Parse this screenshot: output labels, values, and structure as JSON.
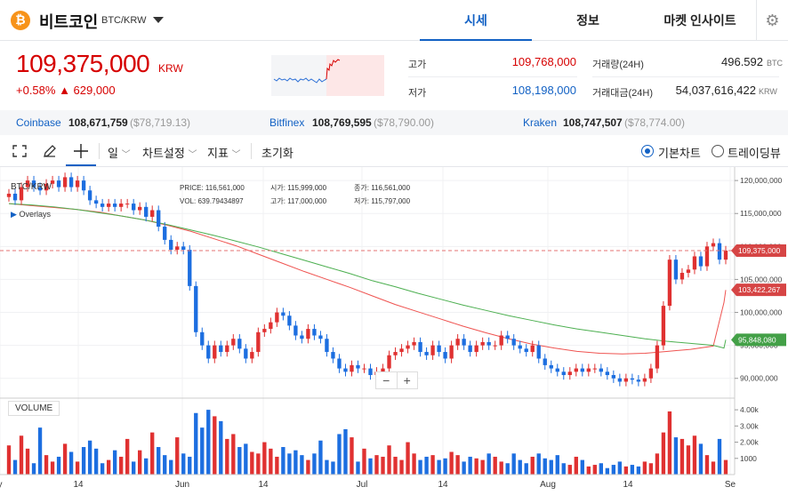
{
  "header": {
    "coin_symbol": "₿",
    "coin_name": "비트코인",
    "pair": "BTC/KRW",
    "tabs": [
      "시세",
      "정보",
      "마켓 인사이트"
    ],
    "active_tab": 0
  },
  "price": {
    "value": "109,375,000",
    "unit": "KRW",
    "change_pct": "+0.58%",
    "change_amt": "▲ 629,000"
  },
  "stats": {
    "high_label": "고가",
    "high": "109,768,000",
    "low_label": "저가",
    "low": "108,198,000",
    "vol_label": "거래량(24H)",
    "vol": "496.592",
    "vol_unit": "BTC",
    "amt_label": "거래대금(24H)",
    "amt": "54,037,616,422",
    "amt_unit": "KRW"
  },
  "exchanges": [
    {
      "name": "Coinbase",
      "price": "108,671,759",
      "usd": "($78,719.13)"
    },
    {
      "name": "Bitfinex",
      "price": "108,769,595",
      "usd": "($78,790.00)"
    },
    {
      "name": "Kraken",
      "price": "108,747,507",
      "usd": "($78,774.00)"
    }
  ],
  "toolbar": {
    "period": "일",
    "settings": "차트설정",
    "indicators": "지표",
    "reset": "초기화",
    "mode_basic": "기본차트",
    "mode_tv": "트레이딩뷰"
  },
  "chart_info": {
    "symbol": "BTC/KRW",
    "overlays": "Overlays",
    "price_label": "PRICE:",
    "price": "116,561,000",
    "open_label": "시가:",
    "open": "115,999,000",
    "close_label": "종가:",
    "close": "116,561,000",
    "vol_label": "VOL:",
    "vol": "639.79434897",
    "high_label": "고가:",
    "high": "117,000,000",
    "low_label": "저가:",
    "low": "115,797,000",
    "volume_title": "VOLUME",
    "zoom_minus": "−",
    "zoom_plus": "+"
  },
  "chart_data": {
    "type": "candlestick",
    "y_ticks": [
      "120,000,000",
      "115,000,000",
      "110,000,000",
      "105,000,000",
      "100,000,000",
      "95,000,000",
      "90,000,000"
    ],
    "ylim": [
      87000000,
      121500000
    ],
    "vol_ticks": [
      "4.00k",
      "3.00k",
      "2.00k",
      "1000"
    ],
    "vol_lim": [
      0,
      4500
    ],
    "x_ticks": [
      "y",
      "14",
      "Jun",
      "14",
      "Jul",
      "14",
      "Aug",
      "14",
      "Se"
    ],
    "last_price_label": "109,375,000",
    "ma_red_label": "103,422,267",
    "ma_green_label": "95,848,080",
    "last_price": 109375000,
    "ma_red_last": 103422267,
    "ma_green_last": 95848080,
    "candles": [
      [
        117.5,
        118
      ],
      [
        118,
        117
      ],
      [
        117,
        119
      ],
      [
        119,
        120
      ],
      [
        120,
        119
      ],
      [
        119,
        118.5
      ],
      [
        118.5,
        119.5
      ],
      [
        119.5,
        120
      ],
      [
        120,
        119
      ],
      [
        119,
        120.5
      ],
      [
        120.5,
        119
      ],
      [
        119,
        120
      ],
      [
        120,
        118.5
      ],
      [
        118.5,
        117
      ],
      [
        117,
        116.5
      ],
      [
        116.5,
        116
      ],
      [
        116,
        116.5
      ],
      [
        116.5,
        116
      ],
      [
        116,
        116.5
      ],
      [
        116.5,
        116.5
      ],
      [
        116.5,
        115.5
      ],
      [
        115.5,
        116
      ],
      [
        116,
        114.5
      ],
      [
        114.5,
        115.5
      ],
      [
        115.5,
        113
      ],
      [
        113,
        111
      ],
      [
        111,
        109.5
      ],
      [
        109.5,
        110
      ],
      [
        110,
        109.5
      ],
      [
        109.5,
        104
      ],
      [
        104,
        97
      ],
      [
        97,
        95
      ],
      [
        95,
        93
      ],
      [
        93,
        95
      ],
      [
        95,
        94
      ],
      [
        94,
        95
      ],
      [
        95,
        96
      ],
      [
        96,
        94.5
      ],
      [
        94.5,
        93
      ],
      [
        93,
        94
      ],
      [
        94,
        97
      ],
      [
        97,
        97.5
      ],
      [
        97.5,
        98.5
      ],
      [
        98.5,
        100
      ],
      [
        100,
        99.5
      ],
      [
        99.5,
        98
      ],
      [
        98,
        96.5
      ],
      [
        96.5,
        96
      ],
      [
        96,
        97.5
      ],
      [
        97.5,
        96.5
      ],
      [
        96.5,
        96
      ],
      [
        96,
        94
      ],
      [
        94,
        93
      ],
      [
        93,
        91.5
      ],
      [
        91.5,
        91
      ],
      [
        91,
        92
      ],
      [
        92,
        91.5
      ],
      [
        91.5,
        91.5
      ],
      [
        91.5,
        90.5
      ],
      [
        90.5,
        91
      ],
      [
        91,
        91.5
      ],
      [
        91.5,
        93.5
      ],
      [
        93.5,
        94
      ],
      [
        94,
        94.5
      ],
      [
        94.5,
        95
      ],
      [
        95,
        95.5
      ],
      [
        95.5,
        94
      ],
      [
        94,
        93.5
      ],
      [
        93.5,
        95
      ],
      [
        95,
        94
      ],
      [
        94,
        93
      ],
      [
        93,
        95
      ],
      [
        95,
        96
      ],
      [
        96,
        95
      ],
      [
        95,
        94
      ],
      [
        94,
        95
      ],
      [
        95,
        95.5
      ],
      [
        95.5,
        95
      ],
      [
        95,
        95
      ],
      [
        95,
        96.5
      ],
      [
        96.5,
        96
      ],
      [
        96,
        95
      ],
      [
        95,
        94.5
      ],
      [
        94.5,
        94
      ],
      [
        94,
        95
      ],
      [
        95,
        93
      ],
      [
        93,
        92
      ],
      [
        92,
        91.5
      ],
      [
        91.5,
        91
      ],
      [
        91,
        90.5
      ],
      [
        90.5,
        91
      ],
      [
        91,
        91.5
      ],
      [
        91.5,
        91
      ],
      [
        91,
        91.5
      ],
      [
        91.5,
        91.5
      ],
      [
        91.5,
        91
      ],
      [
        91,
        90.5
      ],
      [
        90.5,
        90
      ],
      [
        90,
        89.5
      ],
      [
        89.5,
        90
      ],
      [
        90,
        89.8
      ],
      [
        89.8,
        89.5
      ],
      [
        89.5,
        90
      ],
      [
        90,
        91.5
      ],
      [
        91.5,
        95
      ],
      [
        95,
        101
      ],
      [
        101,
        108
      ],
      [
        108,
        105
      ],
      [
        105,
        106
      ],
      [
        106,
        106.5
      ],
      [
        106.5,
        108.5
      ],
      [
        108.5,
        107
      ],
      [
        107,
        110
      ],
      [
        110,
        110.5
      ],
      [
        110.5,
        108
      ],
      [
        108,
        109.375
      ]
    ],
    "volumes": [
      1800,
      900,
      2400,
      1600,
      700,
      2900,
      1200,
      800,
      1100,
      1900,
      1400,
      800,
      1700,
      2100,
      1600,
      700,
      900,
      1500,
      1100,
      2200,
      800,
      1500,
      1000,
      2600,
      1700,
      1200,
      900,
      2300,
      1300,
      1100,
      3800,
      2900,
      4000,
      3600,
      3300,
      2200,
      2500,
      1700,
      1900,
      1400,
      1300,
      2000,
      1600,
      1100,
      1700,
      1300,
      1500,
      1200,
      900,
      1300,
      2100,
      900,
      800,
      2500,
      2800,
      2300,
      800,
      1600,
      1000,
      1200,
      1100,
      1800,
      1100,
      900,
      2000,
      1300,
      900,
      1100,
      1200,
      900,
      1000,
      1400,
      1200,
      800,
      1100,
      1000,
      900,
      1300,
      1100,
      800,
      700,
      1300,
      900,
      700,
      1100,
      1300,
      1000,
      900,
      1200,
      700,
      600,
      1100,
      900,
      500,
      600,
      700,
      400,
      600,
      800,
      500,
      600,
      500,
      800,
      700,
      1300,
      2600,
      3900,
      2300,
      2200,
      1800,
      2400,
      1900,
      1200,
      800,
      2200,
      900
    ],
    "ma_red": [
      116.5,
      116.2,
      115.9,
      115.6,
      115.2,
      114.6,
      114.0,
      113.2,
      112.3,
      111.2,
      110.1,
      108.8,
      107.5,
      106.2,
      105.0,
      103.8,
      102.5,
      101.2,
      100.1,
      99.0,
      97.9,
      96.9,
      96.0,
      95.2,
      94.6,
      94.1,
      93.8,
      93.7,
      93.8,
      94.1,
      94.4,
      94.9
    ],
    "ma_green": [
      116.5,
      116.3,
      116.0,
      115.6,
      115.1,
      114.6,
      114.0,
      113.3,
      112.5,
      111.7,
      110.8,
      109.9,
      108.9,
      107.9,
      106.9,
      105.9,
      104.8,
      103.9,
      102.9,
      102.0,
      101.1,
      100.3,
      99.5,
      98.8,
      98.1,
      97.5,
      97.0,
      96.5,
      96.0,
      95.6,
      95.3,
      95.0
    ],
    "ma_red_end": [
      101.5,
      103.4
    ],
    "ma_green_end": [
      94.6,
      95.85
    ]
  }
}
